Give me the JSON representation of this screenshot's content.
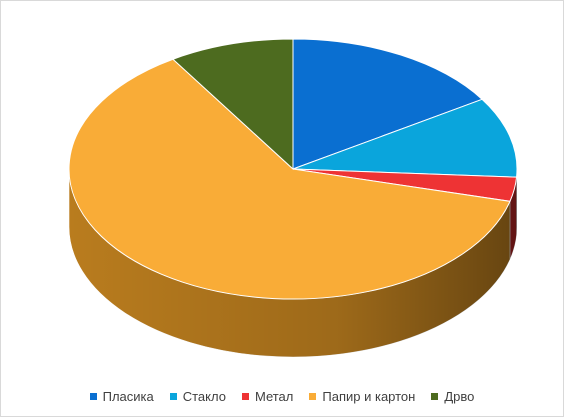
{
  "chart_data": {
    "type": "pie",
    "style": "3d",
    "title": "",
    "legend_position": "bottom",
    "categories": [
      "Пласика",
      "Стакло",
      "Метал",
      "Папир и картон",
      "Дрво"
    ],
    "values": [
      16,
      10,
      3,
      62,
      9
    ],
    "colors": [
      "#0a6fd1",
      "#0aa5dc",
      "#ee3334",
      "#f9ac37",
      "#4d6b1f"
    ],
    "side_colors": [
      "#0a4f96",
      "#087aa3",
      "#b22424",
      "#b97c1e",
      "#34491a"
    ]
  }
}
